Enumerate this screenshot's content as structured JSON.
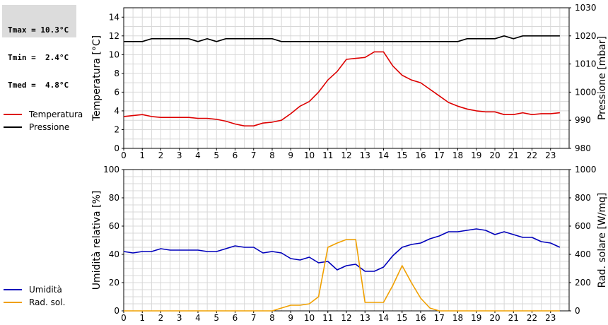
{
  "stats": {
    "tmax": "Tmax = 10.3°C",
    "tmin": "Tmin =  2.4°C",
    "tmed": "Tmed =  4.8°C"
  },
  "chart_data": [
    {
      "type": "line",
      "xlim": [
        0,
        24
      ],
      "x_ticks": [
        "0",
        "1",
        "2",
        "3",
        "4",
        "5",
        "6",
        "7",
        "8",
        "9",
        "10",
        "11",
        "12",
        "13",
        "14",
        "15",
        "16",
        "17",
        "18",
        "19",
        "20",
        "21",
        "22",
        "23"
      ],
      "grid": true,
      "legend_position": "left",
      "left_axis": {
        "label": "Temperatura [°C]",
        "ylim": [
          0,
          15
        ],
        "ticks": [
          "0",
          "2",
          "4",
          "6",
          "8",
          "10",
          "12",
          "14"
        ]
      },
      "right_axis": {
        "label": "Pressione [mbar]",
        "ylim": [
          980,
          1030
        ],
        "ticks": [
          "980",
          "990",
          "1000",
          "1010",
          "1020",
          "1030"
        ]
      },
      "series": [
        {
          "name": "Temperatura",
          "axis": "left",
          "color": "#dd0000",
          "x": [
            0,
            0.5,
            1,
            1.5,
            2,
            2.5,
            3,
            3.5,
            4,
            4.5,
            5,
            5.5,
            6,
            6.5,
            7,
            7.5,
            8,
            8.5,
            9,
            9.5,
            10,
            10.5,
            11,
            11.5,
            12,
            12.5,
            13,
            13.5,
            14,
            14.5,
            15,
            15.5,
            16,
            16.5,
            17,
            17.5,
            18,
            18.5,
            19,
            19.5,
            20,
            20.5,
            21,
            21.5,
            22,
            22.5,
            23,
            23.5
          ],
          "y": [
            3.4,
            3.5,
            3.6,
            3.4,
            3.3,
            3.3,
            3.3,
            3.3,
            3.2,
            3.2,
            3.1,
            2.9,
            2.6,
            2.4,
            2.4,
            2.7,
            2.8,
            3.0,
            3.7,
            4.5,
            5.0,
            6.0,
            7.3,
            8.2,
            9.5,
            9.6,
            9.7,
            10.3,
            10.3,
            8.8,
            7.8,
            7.3,
            7.0,
            6.3,
            5.6,
            4.9,
            4.5,
            4.2,
            4.0,
            3.9,
            3.9,
            3.6,
            3.6,
            3.8,
            3.6,
            3.7,
            3.7,
            3.8
          ]
        },
        {
          "name": "Pressione",
          "axis": "right",
          "color": "#000000",
          "x": [
            0,
            0.5,
            1,
            1.5,
            2,
            2.5,
            3,
            3.5,
            4,
            4.5,
            5,
            5.5,
            6,
            6.5,
            7,
            7.5,
            8,
            8.5,
            9,
            9.5,
            10,
            10.5,
            11,
            11.5,
            12,
            12.5,
            13,
            13.5,
            14,
            14.5,
            15,
            15.5,
            16,
            16.5,
            17,
            17.5,
            18,
            18.5,
            19,
            19.5,
            20,
            20.5,
            21,
            21.5,
            22,
            22.5,
            23,
            23.5
          ],
          "y": [
            1018,
            1018,
            1018,
            1019,
            1019,
            1019,
            1019,
            1019,
            1018,
            1019,
            1018,
            1019,
            1019,
            1019,
            1019,
            1019,
            1019,
            1018,
            1018,
            1018,
            1018,
            1018,
            1018,
            1018,
            1018,
            1018,
            1018,
            1018,
            1018,
            1018,
            1018,
            1018,
            1018,
            1018,
            1018,
            1018,
            1018,
            1019,
            1019,
            1019,
            1019,
            1020,
            1019,
            1020,
            1020,
            1020,
            1020,
            1020
          ]
        }
      ]
    },
    {
      "type": "line",
      "xlim": [
        0,
        24
      ],
      "x_ticks": [
        "0",
        "1",
        "2",
        "3",
        "4",
        "5",
        "6",
        "7",
        "8",
        "9",
        "10",
        "11",
        "12",
        "13",
        "14",
        "15",
        "16",
        "17",
        "18",
        "19",
        "20",
        "21",
        "22",
        "23"
      ],
      "grid": true,
      "legend_position": "left",
      "left_axis": {
        "label": "Umidità relativa [%]",
        "ylim": [
          0,
          100
        ],
        "ticks": [
          "0",
          "20",
          "40",
          "60",
          "80",
          "100"
        ]
      },
      "right_axis": {
        "label": "Rad. solare [W/mq]",
        "ylim": [
          0,
          1000
        ],
        "ticks": [
          "0",
          "200",
          "400",
          "600",
          "800",
          "1000"
        ]
      },
      "series": [
        {
          "name": "Umidità",
          "axis": "left",
          "color": "#0000bb",
          "x": [
            0,
            0.5,
            1,
            1.5,
            2,
            2.5,
            3,
            3.5,
            4,
            4.5,
            5,
            5.5,
            6,
            6.5,
            7,
            7.5,
            8,
            8.5,
            9,
            9.5,
            10,
            10.5,
            11,
            11.5,
            12,
            12.5,
            13,
            13.5,
            14,
            14.5,
            15,
            15.5,
            16,
            16.5,
            17,
            17.5,
            18,
            18.5,
            19,
            19.5,
            20,
            20.5,
            21,
            21.5,
            22,
            22.5,
            23,
            23.5
          ],
          "y": [
            42,
            41,
            42,
            42,
            44,
            43,
            43,
            43,
            43,
            42,
            42,
            44,
            46,
            45,
            45,
            41,
            42,
            41,
            37,
            36,
            38,
            34,
            35,
            29,
            32,
            33,
            28,
            28,
            31,
            39,
            45,
            47,
            48,
            51,
            53,
            56,
            56,
            57,
            58,
            57,
            54,
            56,
            54,
            52,
            52,
            49,
            48,
            45
          ]
        },
        {
          "name": "Rad. sol.",
          "axis": "right",
          "color": "#f0a000",
          "x": [
            0,
            0.5,
            1,
            1.5,
            2,
            2.5,
            3,
            3.5,
            4,
            4.5,
            5,
            5.5,
            6,
            6.5,
            7,
            7.5,
            8,
            8.5,
            9,
            9.5,
            10,
            10.5,
            11,
            11.5,
            12,
            12.5,
            13,
            13.5,
            14,
            14.5,
            15,
            15.5,
            16,
            16.5,
            17,
            17.5,
            18,
            18.5,
            19,
            19.5,
            20,
            20.5,
            21,
            21.5,
            22,
            22.5,
            23,
            23.5
          ],
          "y": [
            0,
            0,
            0,
            0,
            0,
            0,
            0,
            0,
            0,
            0,
            0,
            0,
            0,
            0,
            0,
            0,
            0,
            20,
            40,
            40,
            50,
            100,
            450,
            480,
            505,
            505,
            60,
            60,
            60,
            180,
            320,
            200,
            90,
            20,
            0,
            0,
            0,
            0,
            0,
            0,
            0,
            0,
            0,
            0,
            0,
            0,
            0,
            0
          ]
        }
      ]
    }
  ]
}
